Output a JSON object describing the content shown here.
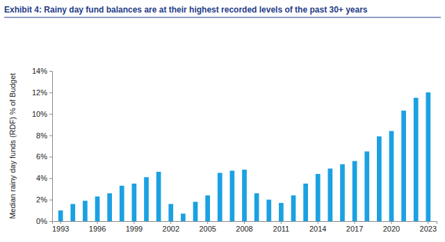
{
  "chart_data": {
    "type": "bar",
    "title": "Exhibit 4: Rainy day fund balances are at their highest recorded levels of the past 30+ years",
    "ylabel": "Median rainy day funds (RDF) % of Budget",
    "categories": [
      "1993",
      null,
      null,
      "1996",
      null,
      null,
      "1999",
      null,
      null,
      "2002",
      null,
      null,
      "2005",
      null,
      null,
      "2008",
      null,
      null,
      "2011",
      null,
      null,
      "2014",
      null,
      null,
      "2017",
      null,
      null,
      "2020",
      null,
      null,
      "2023"
    ],
    "values": [
      1.0,
      1.6,
      1.9,
      2.3,
      2.6,
      3.3,
      3.5,
      4.1,
      4.6,
      1.6,
      0.7,
      1.8,
      2.4,
      4.5,
      4.7,
      4.8,
      2.6,
      2.0,
      1.7,
      2.4,
      3.5,
      4.4,
      4.9,
      5.3,
      5.6,
      6.5,
      7.9,
      8.4,
      10.3,
      11.5,
      12.0
    ],
    "color": "#1ba1e2",
    "ylim": [
      0,
      14
    ],
    "yticks": [
      {
        "value": 0,
        "label": "0%"
      },
      {
        "value": 2,
        "label": "2%"
      },
      {
        "value": 4,
        "label": "4%"
      },
      {
        "value": 6,
        "label": "6%"
      },
      {
        "value": 8,
        "label": "8%"
      },
      {
        "value": 10,
        "label": "10%"
      },
      {
        "value": 12,
        "label": "12%"
      },
      {
        "value": 14,
        "label": "14%"
      }
    ],
    "grid": false
  }
}
